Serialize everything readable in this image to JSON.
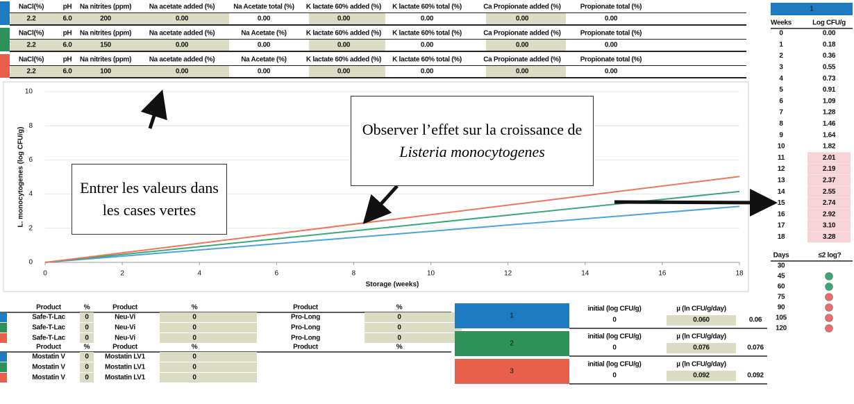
{
  "scenarios": [
    {
      "headers": [
        "NaCl(%)",
        "pH",
        "Na nitrites (ppm)",
        "Na acetate added (%)",
        "Na Acetate total (%)",
        "K lactate 60% added (%)",
        "K lactate 60% total (%)",
        "Ca Propionate added (%)",
        "Propionate total (%)"
      ],
      "values": [
        "2.2",
        "6.0",
        "200",
        "0.00",
        "0.00",
        "0.00",
        "0.00",
        "0.00",
        "0.00"
      ],
      "color": "#1f7bc1"
    },
    {
      "headers": [
        "NaCl(%)",
        "pH",
        "Na nitrites (ppm)",
        "Na acetate added (%)",
        "Na Acetate (%)",
        "K lactate 60% added (%)",
        "K lactate 60% total (%)",
        "Ca Propionate added (%)",
        "Propionate total (%)"
      ],
      "values": [
        "2.2",
        "6.0",
        "150",
        "0.00",
        "0.00",
        "0.00",
        "0.00",
        "0.00",
        "0.00"
      ],
      "color": "#2e9157"
    },
    {
      "headers": [
        "NaCl(%)",
        "pH",
        "Na nitrites (ppm)",
        "Na acetate added (%)",
        "Na Acetate (%)",
        "K lactate 60% added (%)",
        "K lactate 60% total (%)",
        "Ca Propionate added (%)",
        "Propionate total (%)"
      ],
      "values": [
        "2.2",
        "6.0",
        "100",
        "0.00",
        "0.00",
        "0.00",
        "0.00",
        "0.00",
        "0.00"
      ],
      "color": "#e8604c"
    }
  ],
  "chart_data": {
    "type": "line",
    "x_label": "Storage (weeks)",
    "y_label": "L. monocytogenes (log CFU/g)",
    "x": [
      0,
      18
    ],
    "series": [
      {
        "name": "1",
        "color": "#4aa3df",
        "values": [
          0,
          3.28
        ]
      },
      {
        "name": "2",
        "color": "#3aa776",
        "values": [
          0,
          4.15
        ]
      },
      {
        "name": "3",
        "color": "#f0735a",
        "values": [
          0,
          5.03
        ]
      }
    ],
    "xlim": [
      0,
      18
    ],
    "xticks": [
      0,
      2,
      4,
      6,
      8,
      10,
      12,
      14,
      16,
      18
    ],
    "ylim": [
      0,
      10
    ],
    "yticks": [
      0,
      2,
      4,
      6,
      8,
      10
    ],
    "grid": true
  },
  "annotations": {
    "left": "Entrer les valeurs dans les cases vertes",
    "right": {
      "text": "Observer l’effet sur la croissance de",
      "emphasis": "Listeria monocytogenes"
    }
  },
  "weeks_table": {
    "label": "1",
    "headers": [
      "Weeks",
      "Log CFU/g"
    ],
    "rows": [
      [
        "0",
        "0.00"
      ],
      [
        "1",
        "0.18"
      ],
      [
        "2",
        "0.36"
      ],
      [
        "3",
        "0.55"
      ],
      [
        "4",
        "0.73"
      ],
      [
        "5",
        "0.91"
      ],
      [
        "6",
        "1.09"
      ],
      [
        "7",
        "1.28"
      ],
      [
        "8",
        "1.46"
      ],
      [
        "9",
        "1.64"
      ],
      [
        "10",
        "1.82"
      ],
      [
        "11",
        "2.01"
      ],
      [
        "12",
        "2.19"
      ],
      [
        "13",
        "2.37"
      ],
      [
        "14",
        "2.55"
      ],
      [
        "15",
        "2.74"
      ],
      [
        "16",
        "2.92"
      ],
      [
        "17",
        "3.10"
      ],
      [
        "18",
        "3.28"
      ]
    ],
    "highlight_from": 11
  },
  "days_table": {
    "headers": [
      "Days",
      "≤2 log?"
    ],
    "rows": [
      [
        "30",
        null
      ],
      [
        "45",
        "#3aa776"
      ],
      [
        "60",
        "#3aa776"
      ],
      [
        "75",
        "#ef6b6b"
      ],
      [
        "90",
        "#ef6b6b"
      ],
      [
        "105",
        "#ef6b6b"
      ],
      [
        "120",
        "#ef6b6b"
      ]
    ]
  },
  "product_table": {
    "headers": [
      "Product",
      "%",
      "Product",
      "%",
      "Product",
      "%"
    ],
    "rows": [
      [
        "Safe-T-Lac",
        "0",
        "Neu-Vi",
        "0",
        "Pro-Long",
        "0"
      ],
      [
        "Safe-T-Lac",
        "0",
        "Neu-Vi",
        "0",
        "Pro-Long",
        "0"
      ],
      [
        "Safe-T-Lac",
        "0",
        "Neu-Vi",
        "0",
        "Pro-Long",
        "0"
      ]
    ]
  },
  "product_table_2": {
    "headers": [
      "Product",
      "%",
      "Product",
      "%",
      "Product",
      "%"
    ],
    "rows": [
      [
        "Mostatin V",
        "0",
        "Mostatin LV1",
        "0"
      ],
      [
        "Mostatin V",
        "0",
        "Mostatin LV1",
        "0"
      ],
      [
        "Mostatin V",
        "0",
        "Mostatin LV1",
        "0"
      ]
    ]
  },
  "models": [
    {
      "label": "1",
      "color": "#1f7bc1",
      "headers": [
        "initial (log CFU/g)",
        "µ (ln CFU/g/day)"
      ],
      "values": [
        "0",
        "0.060"
      ],
      "rate": "0.06"
    },
    {
      "label": "2",
      "color": "#2e9157",
      "headers": [
        "initial (log CFU/g)",
        "µ (ln CFU/g/day)"
      ],
      "values": [
        "0",
        "0.076"
      ],
      "rate": "0.076"
    },
    {
      "label": "3",
      "color": "#e8604c",
      "headers": [
        "initial (log CFU/g)",
        "µ (ln CFU/g/day)"
      ],
      "values": [
        "0",
        "0.092"
      ],
      "rate": "0.092"
    }
  ]
}
